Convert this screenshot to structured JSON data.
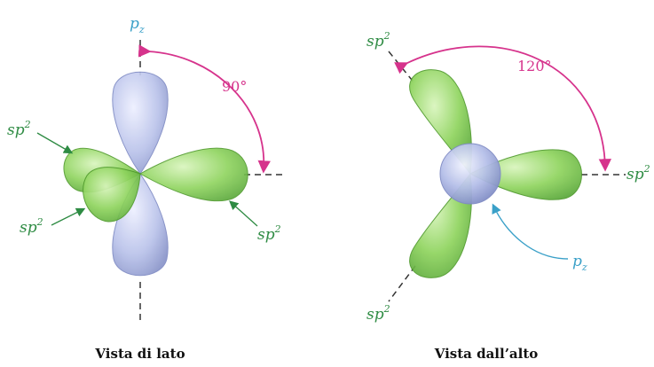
{
  "colors": {
    "green_orbital": "#8fd45e",
    "green_stroke": "#4f9a2c",
    "blue_orbital": "#b9c2ea",
    "blue_stroke": "#7f8bc4",
    "angle_magenta": "#d6338c",
    "label_green": "#2e8b43",
    "label_blue": "#3aa0c8"
  },
  "left_view": {
    "pz_label": {
      "base": "p",
      "sub": "z"
    },
    "angle_label": "90°",
    "sp2_labels": [
      {
        "base": "sp",
        "sup": "2"
      },
      {
        "base": "sp",
        "sup": "2"
      },
      {
        "base": "sp",
        "sup": "2"
      }
    ],
    "caption": "Vista di lato"
  },
  "right_view": {
    "pz_label": {
      "base": "p",
      "sub": "z"
    },
    "angle_label": "120°",
    "sp2_labels": [
      {
        "base": "sp",
        "sup": "2"
      },
      {
        "base": "sp",
        "sup": "2"
      },
      {
        "base": "sp",
        "sup": "2"
      }
    ],
    "caption": "Vista dall’alto"
  }
}
